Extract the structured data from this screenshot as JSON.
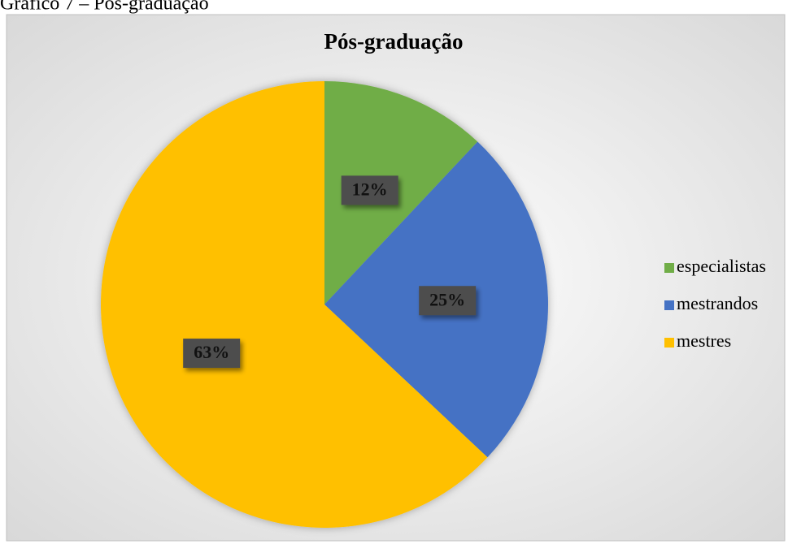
{
  "caption": "Gráfico 7 – Pós-graduação",
  "chart_data": {
    "type": "pie",
    "title": "Pós-graduação",
    "categories": [
      "especialistas",
      "mestrandos",
      "mestres"
    ],
    "values": [
      12,
      25,
      63
    ],
    "value_labels": [
      "12%",
      "25%",
      "63%"
    ],
    "colors": [
      "#70ad47",
      "#4472c4",
      "#ffc000"
    ],
    "legend": "right"
  }
}
